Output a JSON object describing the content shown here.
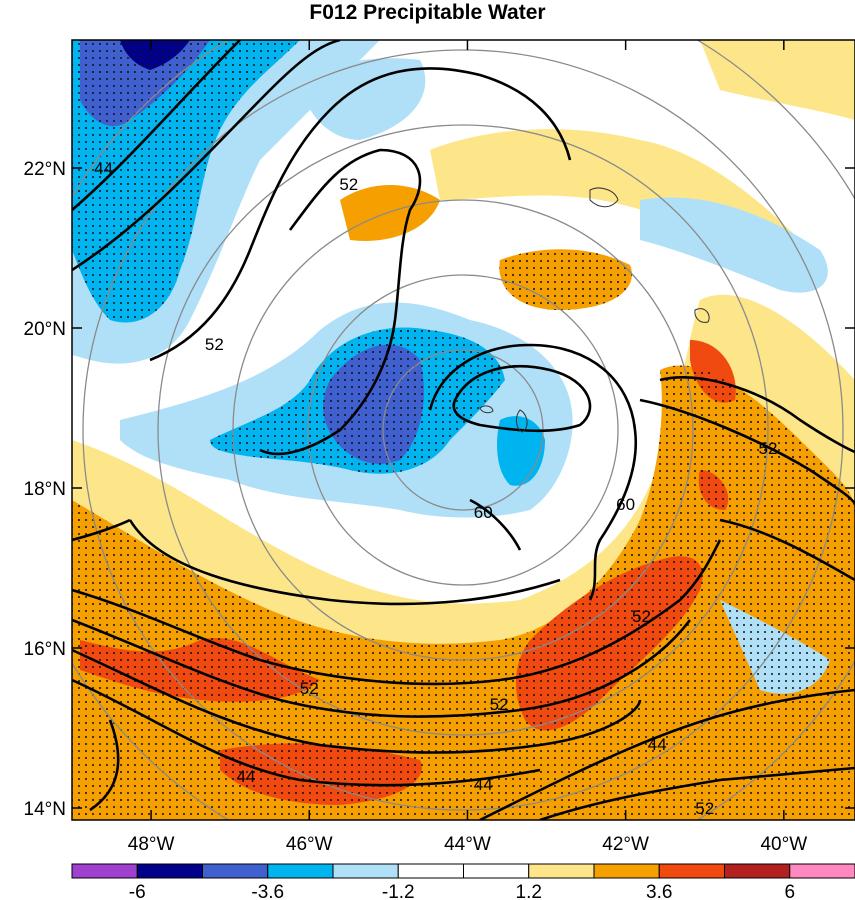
{
  "title": "F012 Precipitable Water",
  "map": {
    "lon_range": [
      -49,
      -39.1
    ],
    "lat_range": [
      13.85,
      23.6
    ],
    "lon_ticks": [
      {
        "value": -48,
        "label": "48°W"
      },
      {
        "value": -46,
        "label": "46°W"
      },
      {
        "value": -44,
        "label": "44°W"
      },
      {
        "value": -42,
        "label": "42°W"
      },
      {
        "value": -40,
        "label": "40°W"
      }
    ],
    "lat_ticks": [
      {
        "value": 14,
        "label": "14°N"
      },
      {
        "value": 16,
        "label": "16°N"
      },
      {
        "value": 18,
        "label": "18°N"
      },
      {
        "value": 20,
        "label": "20°N"
      },
      {
        "value": 22,
        "label": "22°N"
      }
    ],
    "contour_labels": [
      {
        "text": "52",
        "lon": -45.5,
        "lat": 21.8
      },
      {
        "text": "44",
        "lon": -48.6,
        "lat": 22.0
      },
      {
        "text": "52",
        "lon": -47.2,
        "lat": 19.8
      },
      {
        "text": "60",
        "lon": -43.8,
        "lat": 17.7
      },
      {
        "text": "60",
        "lon": -42.0,
        "lat": 17.8
      },
      {
        "text": "52",
        "lon": -40.2,
        "lat": 18.5
      },
      {
        "text": "52",
        "lon": -41.8,
        "lat": 16.4
      },
      {
        "text": "52",
        "lon": -46.0,
        "lat": 15.5
      },
      {
        "text": "52",
        "lon": -43.6,
        "lat": 15.3
      },
      {
        "text": "44",
        "lon": -46.8,
        "lat": 14.4
      },
      {
        "text": "44",
        "lon": -43.8,
        "lat": 14.3
      },
      {
        "text": "44",
        "lon": -41.6,
        "lat": 14.8
      },
      {
        "text": "52",
        "lon": -41.0,
        "lat": 14.0
      }
    ]
  },
  "colorbar": {
    "colors": [
      "#a040d0",
      "#00008b",
      "#4060d0",
      "#00b4f0",
      "#b0e0f8",
      "#ffffff",
      "#ffffff",
      "#fde68a",
      "#f5a000",
      "#f04a10",
      "#b22020",
      "#ff88c0"
    ],
    "labels": [
      {
        "index": 1,
        "text": "-6"
      },
      {
        "index": 3,
        "text": "-3.6"
      },
      {
        "index": 5,
        "text": "-1.2"
      },
      {
        "index": 7,
        "text": "1.2"
      },
      {
        "index": 9,
        "text": "3.6"
      },
      {
        "index": 11,
        "text": "6"
      }
    ]
  }
}
